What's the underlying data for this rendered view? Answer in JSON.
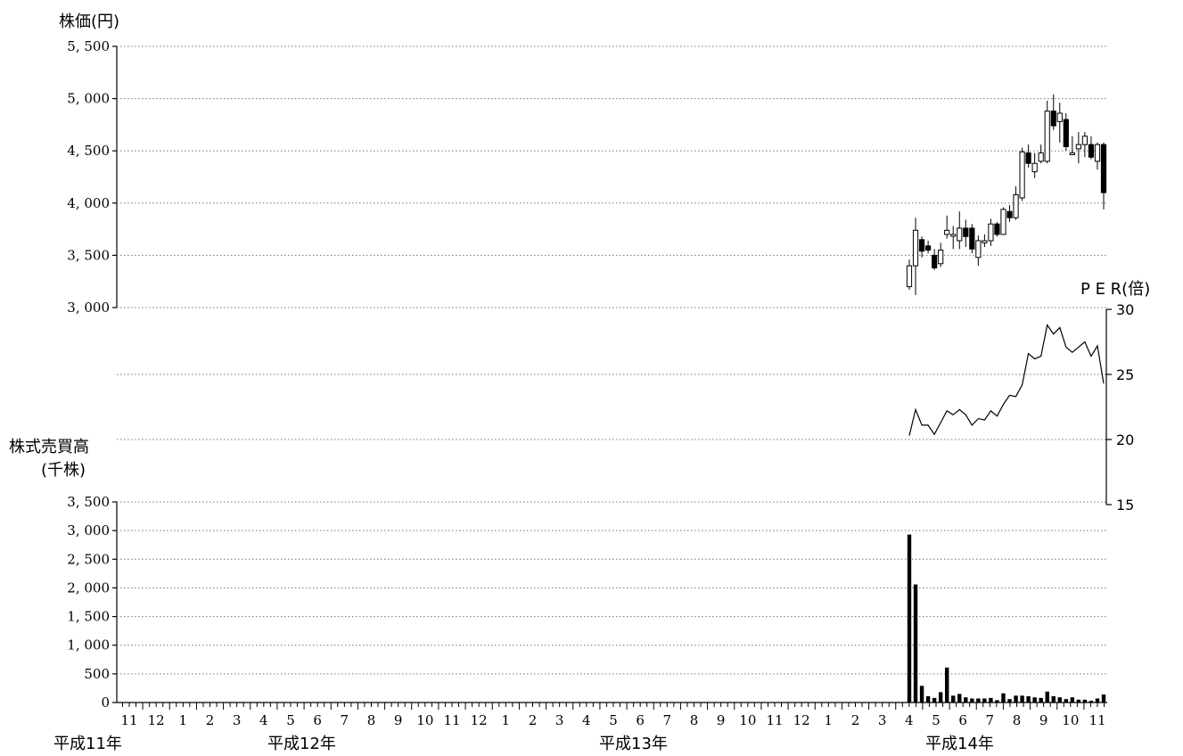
{
  "chart_data": {
    "type": "stock-chart",
    "price_panel": {
      "type": "candlestick",
      "ylabel": "株価(円)",
      "ylim": [
        3000,
        5500
      ],
      "yticks": [
        "3, 000",
        "3, 500",
        "4, 000",
        "4, 500",
        "5, 000",
        "5, 500"
      ],
      "ytick_values": [
        3000,
        3500,
        4000,
        4500,
        5000,
        5500
      ],
      "grid": true,
      "candles": [
        {
          "week": "H14-04a",
          "open": 3200,
          "high": 3460,
          "low": 3170,
          "close": 3400
        },
        {
          "week": "H14-04b",
          "open": 3400,
          "high": 3860,
          "low": 3120,
          "close": 3740
        },
        {
          "week": "H14-04c",
          "open": 3650,
          "high": 3680,
          "low": 3480,
          "close": 3540
        },
        {
          "week": "H14-04d",
          "open": 3590,
          "high": 3640,
          "low": 3520,
          "close": 3550
        },
        {
          "week": "H14-05a",
          "open": 3500,
          "high": 3560,
          "low": 3360,
          "close": 3380
        },
        {
          "week": "H14-05b",
          "open": 3420,
          "high": 3620,
          "low": 3390,
          "close": 3550
        },
        {
          "week": "H14-05c",
          "open": 3700,
          "high": 3880,
          "low": 3660,
          "close": 3740
        },
        {
          "week": "H14-05d",
          "open": 3700,
          "high": 3780,
          "low": 3560,
          "close": 3700
        },
        {
          "week": "H14-06a",
          "open": 3640,
          "high": 3920,
          "low": 3560,
          "close": 3760
        },
        {
          "week": "H14-06b",
          "open": 3760,
          "high": 3840,
          "low": 3580,
          "close": 3680
        },
        {
          "week": "H14-06c",
          "open": 3760,
          "high": 3800,
          "low": 3520,
          "close": 3560
        },
        {
          "week": "H14-06d",
          "open": 3480,
          "high": 3690,
          "low": 3400,
          "close": 3640
        },
        {
          "week": "H14-07a",
          "open": 3620,
          "high": 3700,
          "low": 3580,
          "close": 3640
        },
        {
          "week": "H14-07b",
          "open": 3640,
          "high": 3850,
          "low": 3590,
          "close": 3800
        },
        {
          "week": "H14-07c",
          "open": 3800,
          "high": 3820,
          "low": 3680,
          "close": 3700
        },
        {
          "week": "H14-07d",
          "open": 3700,
          "high": 3960,
          "low": 3700,
          "close": 3940
        },
        {
          "week": "H14-08a",
          "open": 3920,
          "high": 3980,
          "low": 3820,
          "close": 3860
        },
        {
          "week": "H14-08b",
          "open": 3860,
          "high": 4160,
          "low": 3840,
          "close": 4080
        },
        {
          "week": "H14-08c",
          "open": 4050,
          "high": 4530,
          "low": 4020,
          "close": 4490
        },
        {
          "week": "H14-08d",
          "open": 4480,
          "high": 4560,
          "low": 4340,
          "close": 4380
        },
        {
          "week": "H14-08e",
          "open": 4300,
          "high": 4480,
          "low": 4240,
          "close": 4380
        },
        {
          "week": "H14-09a",
          "open": 4400,
          "high": 4560,
          "low": 4380,
          "close": 4480
        },
        {
          "week": "H14-09b",
          "open": 4400,
          "high": 4980,
          "low": 4380,
          "close": 4880
        },
        {
          "week": "H14-09c",
          "open": 4880,
          "high": 5040,
          "low": 4700,
          "close": 4740
        },
        {
          "week": "H14-09d",
          "open": 4780,
          "high": 4960,
          "low": 4580,
          "close": 4860
        },
        {
          "week": "H14-10a",
          "open": 4800,
          "high": 4860,
          "low": 4500,
          "close": 4540
        },
        {
          "week": "H14-10b",
          "open": 4470,
          "high": 4640,
          "low": 4460,
          "close": 4480
        },
        {
          "week": "H14-10c",
          "open": 4520,
          "high": 4680,
          "low": 4380,
          "close": 4560
        },
        {
          "week": "H14-10d",
          "open": 4560,
          "high": 4680,
          "low": 4440,
          "close": 4640
        },
        {
          "week": "H14-11a",
          "open": 4560,
          "high": 4640,
          "low": 4420,
          "close": 4440
        },
        {
          "week": "H14-11b",
          "open": 4400,
          "high": 4580,
          "low": 4320,
          "close": 4560
        },
        {
          "week": "H14-11c",
          "open": 4560,
          "high": 4580,
          "low": 3940,
          "close": 4100
        }
      ]
    },
    "per_panel": {
      "type": "line",
      "ylabel": "P E R(倍)",
      "ylim": [
        15,
        30
      ],
      "yticks": [
        "15",
        "20",
        "25",
        "30"
      ],
      "ytick_values": [
        15,
        20,
        25,
        30
      ],
      "values": [
        20.3,
        22.3,
        21.1,
        21.1,
        20.4,
        21.3,
        22.2,
        21.9,
        22.3,
        21.9,
        21.1,
        21.6,
        21.5,
        22.2,
        21.8,
        22.7,
        23.4,
        23.3,
        24.2,
        26.6,
        26.2,
        26.4,
        28.8,
        28.1,
        28.6,
        27.1,
        26.7,
        27.1,
        27.5,
        26.4,
        27.2,
        24.3
      ]
    },
    "volume_panel": {
      "type": "bar",
      "ylabel_line1": "株式売買高",
      "ylabel_line2": "(千株)",
      "ylim": [
        0,
        3500
      ],
      "yticks": [
        "0",
        "500",
        "1, 000",
        "1, 500",
        "2, 000",
        "2, 500",
        "3, 000",
        "3, 500"
      ],
      "ytick_values": [
        0,
        500,
        1000,
        1500,
        2000,
        2500,
        3000,
        3500
      ],
      "values": [
        2930,
        2060,
        290,
        110,
        80,
        180,
        610,
        120,
        150,
        90,
        70,
        70,
        70,
        80,
        40,
        160,
        60,
        120,
        120,
        110,
        90,
        80,
        190,
        110,
        90,
        60,
        90,
        50,
        50,
        30,
        70,
        140
      ]
    },
    "x_axis": {
      "month_labels": [
        "11",
        "12",
        "1",
        "2",
        "3",
        "4",
        "5",
        "6",
        "7",
        "8",
        "9",
        "10",
        "11",
        "12",
        "1",
        "2",
        "3",
        "4",
        "5",
        "6",
        "7",
        "8",
        "9",
        "10",
        "11",
        "12",
        "1",
        "2",
        "3",
        "4",
        "5",
        "6",
        "7",
        "8",
        "9",
        "10",
        "11"
      ],
      "era_labels": [
        "平成11年",
        "平成12年",
        "平成13年",
        "平成14年"
      ]
    }
  }
}
